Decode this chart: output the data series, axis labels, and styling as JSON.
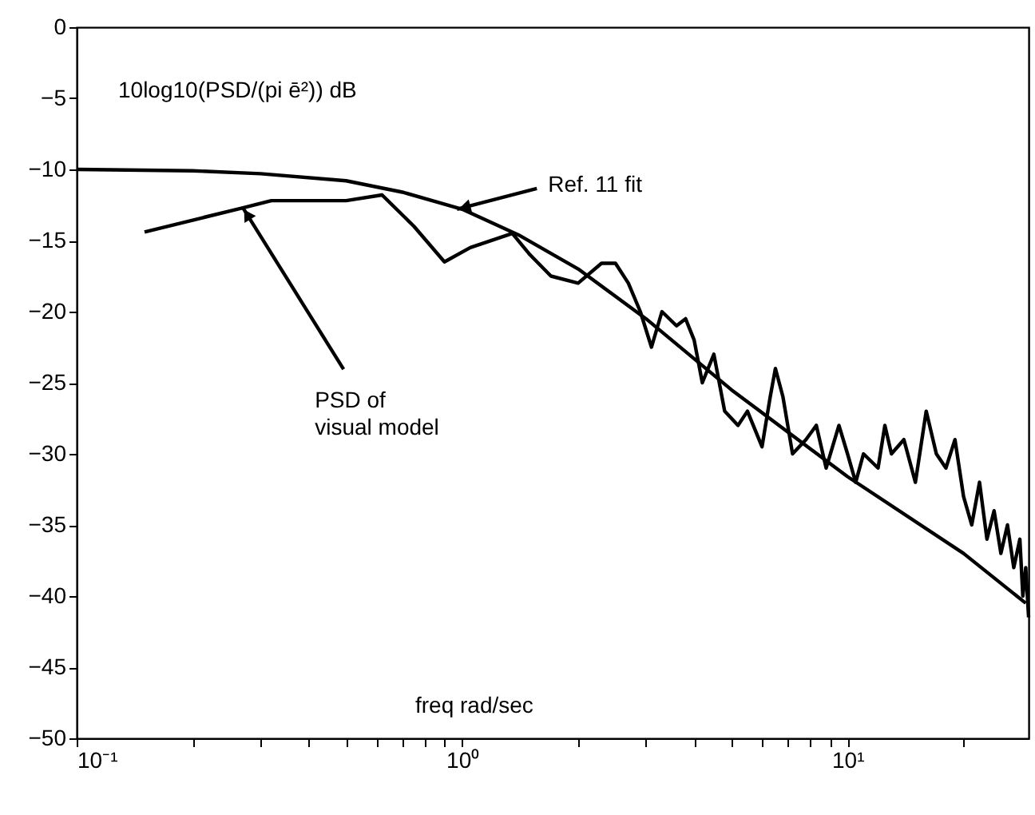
{
  "chart_data": {
    "type": "line",
    "xlabel": "freq  rad/sec",
    "ylabel": "10log10(PSD/(pi ē²)) dB",
    "log": "x",
    "grid": false,
    "marker": "none",
    "line_style": "solid",
    "xlim": [
      0.1,
      29.5
    ],
    "ylim": [
      -50,
      0
    ],
    "xticks": [
      {
        "value": 0.1,
        "label": "10⁻¹"
      },
      {
        "value": 0.2,
        "label": null
      },
      {
        "value": 0.3,
        "label": null
      },
      {
        "value": 0.4,
        "label": null
      },
      {
        "value": 0.5,
        "label": null
      },
      {
        "value": 0.6,
        "label": null
      },
      {
        "value": 0.7,
        "label": null
      },
      {
        "value": 0.8,
        "label": null
      },
      {
        "value": 0.9,
        "label": null
      },
      {
        "value": 1,
        "label": "10⁰"
      },
      {
        "value": 2,
        "label": null
      },
      {
        "value": 3,
        "label": null
      },
      {
        "value": 4,
        "label": null
      },
      {
        "value": 5,
        "label": null
      },
      {
        "value": 6,
        "label": null
      },
      {
        "value": 7,
        "label": null
      },
      {
        "value": 8,
        "label": null
      },
      {
        "value": 9,
        "label": null
      },
      {
        "value": 10,
        "label": "10¹"
      },
      {
        "value": 20,
        "label": null
      }
    ],
    "yticks": [
      -50,
      -45,
      -40,
      -35,
      -30,
      -25,
      -20,
      -15,
      -10,
      -5,
      0
    ],
    "series": [
      {
        "color": "#000000",
        "x": [
          0.1,
          0.2,
          0.3,
          0.5,
          0.7,
          1.0,
          1.4,
          2,
          3,
          5,
          10,
          20,
          29
        ],
        "values": [
          -10,
          -10.1,
          -10.3,
          -10.8,
          -11.6,
          -12.8,
          -14.6,
          -17,
          -20.5,
          -25.5,
          -31.6,
          -37,
          -40.5
        ]
      },
      {
        "color": "#000000",
        "x": [
          0.15,
          0.27,
          0.32,
          0.5,
          0.62,
          0.75,
          0.9,
          1.05,
          1.35,
          1.5,
          1.7,
          2.0,
          2.3,
          2.5,
          2.7,
          2.9,
          3.1,
          3.3,
          3.6,
          3.8,
          4.0,
          4.2,
          4.5,
          4.8,
          5.2,
          5.5,
          6,
          6.3,
          6.5,
          6.8,
          7.2,
          7.8,
          8.3,
          8.8,
          9.5,
          10,
          10.5,
          11,
          12,
          12.5,
          13,
          14,
          15,
          16,
          17,
          18,
          19,
          20,
          21,
          22,
          23,
          24,
          25,
          26,
          27,
          28,
          28.5,
          29,
          29.5
        ],
        "values": [
          -14.4,
          -12.7,
          -12.2,
          -12.2,
          -11.8,
          -14,
          -16.5,
          -15.5,
          -14.5,
          -16,
          -17.5,
          -18,
          -16.6,
          -16.6,
          -18,
          -20,
          -22.5,
          -20,
          -21,
          -20.5,
          -22,
          -25,
          -23,
          -27,
          -28,
          -27,
          -29.5,
          -26,
          -24,
          -26,
          -30,
          -29,
          -28,
          -31,
          -28,
          -30,
          -32,
          -30,
          -31,
          -28,
          -30,
          -29,
          -32,
          -27,
          -30,
          -31,
          -29,
          -33,
          -35,
          -32,
          -36,
          -34,
          -37,
          -35,
          -38,
          -36,
          -40,
          -38,
          -41.5
        ]
      }
    ],
    "annotations": [
      {
        "text": "Ref. 11 fit",
        "x": 0.97,
        "y": -12.8
      },
      {
        "text": "PSD of\nvisual model",
        "x": 0.27,
        "y": -12.7
      }
    ]
  }
}
